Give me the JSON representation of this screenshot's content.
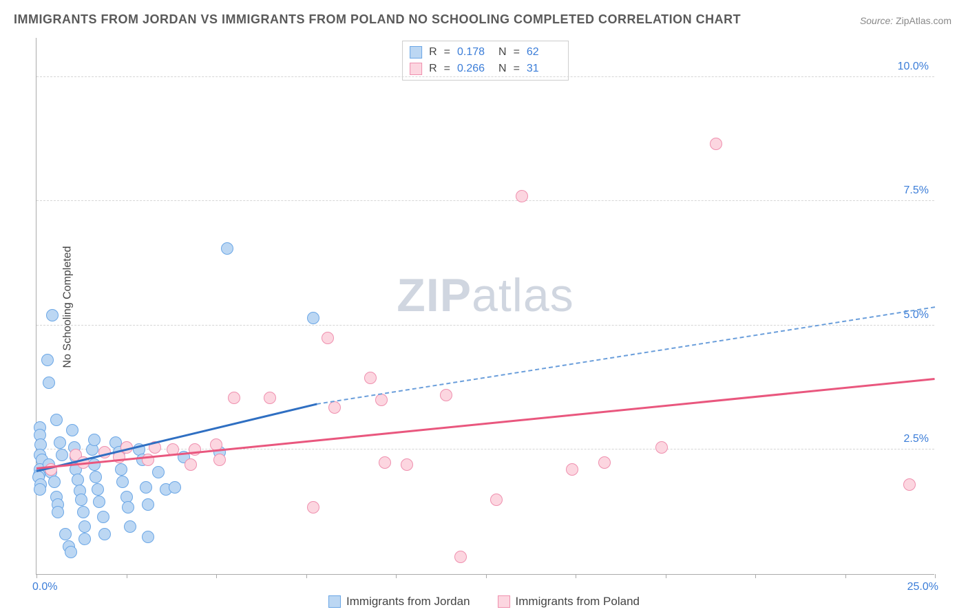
{
  "title": "IMMIGRANTS FROM JORDAN VS IMMIGRANTS FROM POLAND NO SCHOOLING COMPLETED CORRELATION CHART",
  "source_label": "Source:",
  "source_value": "ZipAtlas.com",
  "ylabel": "No Schooling Completed",
  "watermark_a": "ZIP",
  "watermark_b": "atlas",
  "chart": {
    "type": "scatter",
    "background_color": "#ffffff",
    "grid_color": "#d5d5d5",
    "axis_color": "#aaaaaa",
    "label_color": "#444444",
    "tick_label_color": "#3b7dd8",
    "xlim": [
      0,
      25
    ],
    "ylim": [
      0,
      10.8
    ],
    "x_ticks": [
      0,
      2.5,
      5,
      7.5,
      10,
      12.5,
      15,
      17.5,
      20,
      22.5,
      25
    ],
    "x_tick_labels": {
      "0": "0.0%",
      "25": "25.0%"
    },
    "y_gridlines": [
      2.5,
      5.0,
      7.5,
      10.0
    ],
    "y_tick_labels": [
      "2.5%",
      "5.0%",
      "7.5%",
      "10.0%"
    ],
    "marker_radius": 9,
    "marker_border_width": 1.5,
    "series": [
      {
        "name": "Immigrants from Jordan",
        "fill": "#bcd7f3",
        "stroke": "#6aa6e6",
        "line_color": "#2f6fc2",
        "line_width": 3,
        "dash_color": "#6a9edb",
        "stats": {
          "R": "0.178",
          "N": "62"
        },
        "trend": {
          "x0": 0,
          "y0": 2.05,
          "x1": 7.8,
          "y1": 3.4,
          "x2": 25,
          "y2": 5.35
        },
        "points": [
          [
            0.1,
            2.95
          ],
          [
            0.1,
            2.8
          ],
          [
            0.12,
            2.6
          ],
          [
            0.1,
            2.4
          ],
          [
            0.15,
            2.3
          ],
          [
            0.1,
            2.1
          ],
          [
            0.08,
            2.0
          ],
          [
            0.05,
            1.95
          ],
          [
            0.12,
            1.8
          ],
          [
            0.1,
            1.7
          ],
          [
            0.45,
            5.2
          ],
          [
            0.3,
            4.3
          ],
          [
            0.35,
            3.85
          ],
          [
            0.55,
            3.1
          ],
          [
            0.65,
            2.65
          ],
          [
            0.7,
            2.4
          ],
          [
            0.35,
            2.2
          ],
          [
            0.4,
            2.05
          ],
          [
            0.5,
            1.85
          ],
          [
            0.55,
            1.55
          ],
          [
            0.6,
            1.4
          ],
          [
            0.6,
            1.25
          ],
          [
            0.8,
            0.8
          ],
          [
            0.9,
            0.55
          ],
          [
            0.95,
            0.45
          ],
          [
            1.0,
            2.9
          ],
          [
            1.05,
            2.55
          ],
          [
            1.1,
            2.35
          ],
          [
            1.1,
            2.1
          ],
          [
            1.15,
            1.9
          ],
          [
            1.2,
            1.68
          ],
          [
            1.25,
            1.5
          ],
          [
            1.3,
            1.25
          ],
          [
            1.35,
            0.95
          ],
          [
            1.35,
            0.7
          ],
          [
            1.55,
            2.5
          ],
          [
            1.6,
            2.7
          ],
          [
            1.6,
            2.2
          ],
          [
            1.65,
            1.95
          ],
          [
            1.7,
            1.7
          ],
          [
            1.75,
            1.45
          ],
          [
            1.85,
            1.15
          ],
          [
            1.9,
            0.8
          ],
          [
            2.2,
            2.65
          ],
          [
            2.3,
            2.45
          ],
          [
            2.35,
            2.1
          ],
          [
            2.4,
            1.85
          ],
          [
            2.5,
            1.55
          ],
          [
            2.55,
            1.35
          ],
          [
            2.6,
            0.95
          ],
          [
            2.85,
            2.5
          ],
          [
            2.95,
            2.3
          ],
          [
            3.05,
            1.75
          ],
          [
            3.1,
            1.4
          ],
          [
            3.1,
            0.75
          ],
          [
            3.4,
            2.05
          ],
          [
            3.6,
            1.7
          ],
          [
            3.85,
            1.75
          ],
          [
            4.1,
            2.35
          ],
          [
            5.3,
            6.55
          ],
          [
            5.1,
            2.45
          ],
          [
            7.7,
            5.15
          ]
        ]
      },
      {
        "name": "Immigrants from Poland",
        "fill": "#fcd6e0",
        "stroke": "#ef8fae",
        "line_color": "#e9577e",
        "line_width": 3,
        "stats": {
          "R": "0.266",
          "N": "31"
        },
        "trend": {
          "x0": 0,
          "y0": 2.1,
          "x1": 25,
          "y1": 3.9
        },
        "points": [
          [
            0.4,
            2.1
          ],
          [
            1.1,
            2.4
          ],
          [
            1.3,
            2.25
          ],
          [
            1.9,
            2.45
          ],
          [
            2.3,
            2.35
          ],
          [
            2.5,
            2.55
          ],
          [
            3.1,
            2.3
          ],
          [
            3.3,
            2.55
          ],
          [
            3.8,
            2.5
          ],
          [
            4.3,
            2.2
          ],
          [
            4.4,
            2.5
          ],
          [
            5.0,
            2.6
          ],
          [
            5.1,
            2.3
          ],
          [
            5.5,
            3.55
          ],
          [
            6.5,
            3.55
          ],
          [
            7.7,
            1.35
          ],
          [
            8.1,
            4.75
          ],
          [
            8.3,
            3.35
          ],
          [
            9.3,
            3.95
          ],
          [
            9.7,
            2.25
          ],
          [
            9.6,
            3.5
          ],
          [
            10.3,
            2.2
          ],
          [
            11.4,
            3.6
          ],
          [
            11.8,
            0.35
          ],
          [
            12.8,
            1.5
          ],
          [
            13.5,
            7.6
          ],
          [
            14.9,
            2.1
          ],
          [
            15.8,
            2.25
          ],
          [
            17.4,
            2.55
          ],
          [
            18.9,
            8.65
          ],
          [
            24.3,
            1.8
          ]
        ]
      }
    ]
  },
  "legend": {
    "jordan_label": "Immigrants from Jordan",
    "poland_label": "Immigrants from Poland",
    "r_label": "R",
    "n_label": "N",
    "eq": "="
  }
}
